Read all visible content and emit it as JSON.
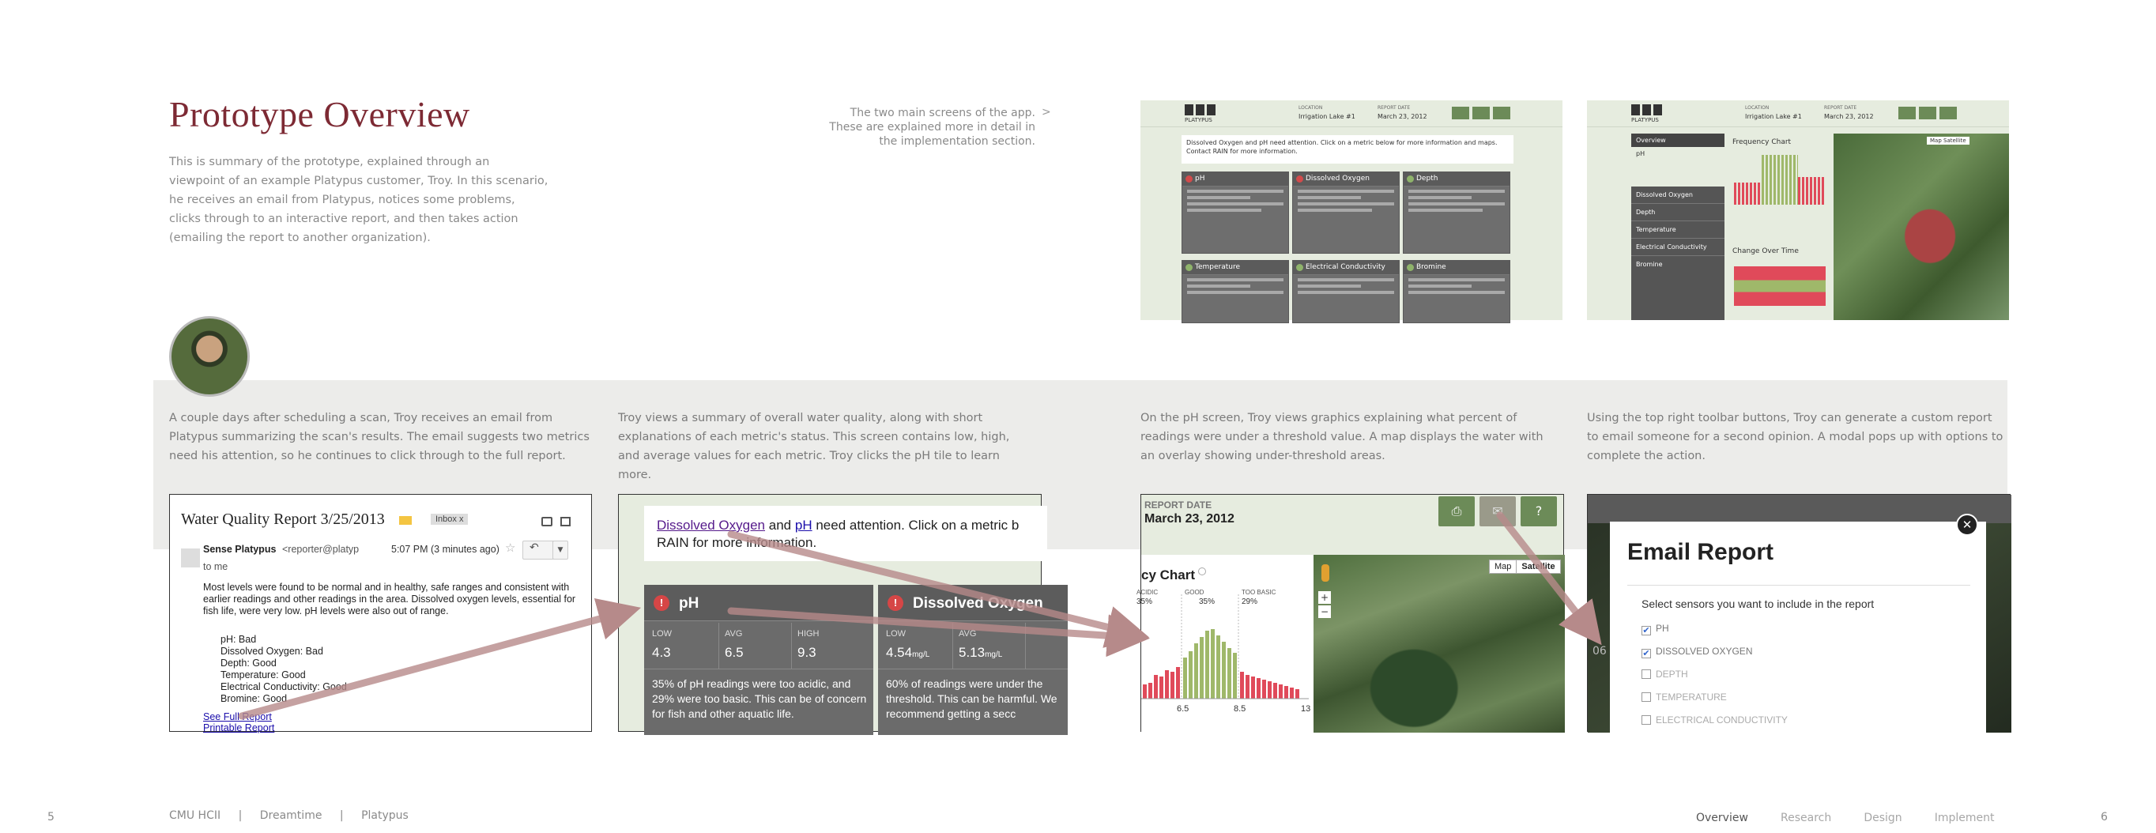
{
  "header": {
    "title": "Prototype Overview",
    "intro": "This is summary of the prototype, explained through an viewpoint of an example Platypus customer, Troy. In this scenario, he receives an email from Platypus, notices some problems, clicks through to an interactive report, and then takes action (emailing the report to another organization).",
    "note": "The two main screens of the app. These are explained more in detail in the implementation section.",
    "note_arrow": ">"
  },
  "thumbs": {
    "logo": "PLATYPUS",
    "location_label": "LOCATION",
    "location": "Irrigation Lake #1",
    "date_label": "REPORT DATE",
    "date": "March 23, 2012",
    "alert": "Dissolved Oxygen and pH need attention. Click on a metric below for more information and maps. Contact RAIN for more information.",
    "tiles": [
      "pH",
      "Dissolved Oxygen",
      "Depth",
      "Temperature",
      "Electrical Conductivity",
      "Bromine"
    ],
    "side_items": [
      "Overview",
      "pH",
      "Dissolved Oxygen",
      "Depth",
      "Temperature",
      "Electrical Conductivity",
      "Bromine"
    ],
    "freq_title": "Frequency Chart",
    "change_title": "Change Over Time",
    "map_btns": [
      "Map",
      "Satellite"
    ]
  },
  "captions": [
    "A couple days after scheduling a scan, Troy receives an email from Platypus summarizing the scan's results. The email suggests two metrics need his attention, so he continues to click through to the full report.",
    "Troy views a summary of overall water quality, along with short explanations of each metric's status. This screen contains low, high, and average values for each metric. Troy clicks the pH tile to learn more.",
    "On the pH screen, Troy views graphics explaining what percent of readings were under a threshold value. A map displays the water with an overlay showing under-threshold areas.",
    "Using the top right toolbar buttons, Troy can generate a custom report to email someone for a second opinion. A modal pops up with options to complete the action."
  ],
  "email": {
    "subject": "Water Quality Report 3/25/2013",
    "inbox_label": "Inbox",
    "inbox_x": "x",
    "sender": "Sense Platypus",
    "sender_addr": "<reporter@platyp",
    "time": "5:07 PM (3 minutes ago)",
    "to": "to me",
    "body": "Most levels were found to be normal and in healthy, safe ranges and consistent with earlier readings and other readings in the area. Dissolved oxygen levels, essential for fish life, were very low. pH levels were also out of range.",
    "items": [
      "pH: Bad",
      "Dissolved Oxygen: Bad",
      "Depth: Good",
      "Temperature: Good",
      "Electrical Conductivity: Good",
      "Bromine: Good"
    ],
    "link1": "See Full Report",
    "link2": "Printable Report"
  },
  "summary": {
    "alert_link1": "Dissolved Oxygen",
    "alert_and": "and",
    "alert_link2": "pH",
    "alert_rest": "need attention. Click on a metric b",
    "alert_line2": "RAIN for more information.",
    "ph": {
      "name": "pH",
      "low": "4.3",
      "avg": "6.5",
      "high": "9.3",
      "text": "35% of pH readings were too acidic, and 29% were too basic. This can be of concern for fish and other aquatic life."
    },
    "do": {
      "name": "Dissolved Oxygen",
      "low": "4.54",
      "low_unit": "mg/L",
      "avg": "5.13",
      "avg_unit": "mg/L",
      "text": "60% of readings were under the threshold. This can be harmful. We recommend getting a secc"
    },
    "labels": {
      "low": "LOW",
      "avg": "AVG",
      "high": "HIGH"
    }
  },
  "ph_screen": {
    "date_label": "REPORT DATE",
    "date": "March 23, 2012",
    "chart_title": "cy Chart",
    "map_btns": [
      "Map",
      "Satellite"
    ],
    "zoom_in": "+",
    "zoom_out": "−"
  },
  "chart_data": {
    "type": "bar",
    "title": "Frequency Chart",
    "annotations": [
      {
        "label": "ACIDIC",
        "value": "35%"
      },
      {
        "label": "GOOD",
        "value": "35%"
      },
      {
        "label": "TOO BASIC",
        "value": "29%"
      }
    ],
    "x_ticks": [
      "6.5",
      "8.5",
      "13"
    ],
    "series": [
      {
        "name": "acidic",
        "color": "#e04a5a",
        "values": [
          18,
          20,
          30,
          28,
          36,
          34,
          40
        ]
      },
      {
        "name": "good",
        "color": "#9fb86a",
        "values": [
          52,
          60,
          70,
          78,
          86,
          88,
          80,
          72,
          64,
          58
        ]
      },
      {
        "name": "basic",
        "color": "#e04a5a",
        "values": [
          34,
          30,
          28,
          26,
          24,
          22,
          20,
          18,
          16,
          14,
          12
        ]
      }
    ]
  },
  "modal": {
    "title": "Email Report",
    "prompt": "Select sensors you want to include in the report",
    "options": [
      {
        "label": "PH",
        "checked": true
      },
      {
        "label": "DISSOLVED OXYGEN",
        "checked": true
      },
      {
        "label": "DEPTH",
        "checked": false
      },
      {
        "label": "TEMPERATURE",
        "checked": false
      },
      {
        "label": "ELECTRICAL CONDUCTIVITY",
        "checked": false
      }
    ],
    "close": "✕",
    "side_num": "06"
  },
  "footer": {
    "page_left": "5",
    "page_right": "6",
    "crumbs": [
      "CMU HCII",
      "Dreamtime",
      "Platypus"
    ],
    "sep": "|",
    "nav": [
      "Overview",
      "Research",
      "Design",
      "Implement"
    ]
  },
  "colors": {
    "title": "#7d2a34",
    "accent_green": "#6c8b58",
    "alert_red": "#d64646",
    "arrow": "#b68a8a"
  }
}
